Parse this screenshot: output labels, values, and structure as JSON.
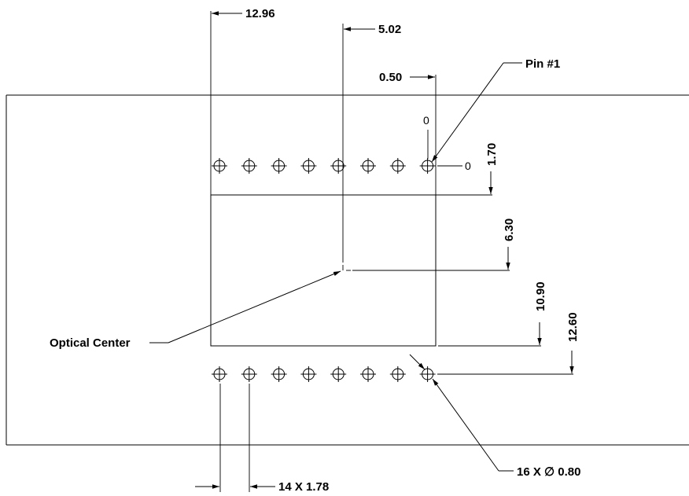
{
  "drawing": {
    "dimensions": {
      "pin1_x_from_left_edge": "12.96",
      "optical_center_x": "5.02",
      "pin1_x": "0.50",
      "pin_row_y": "1.70",
      "optical_center_y": "6.30",
      "die_bottom_y": "10.90",
      "bottom_row_y": "12.60",
      "pin_diameter": "16 X ∅ 0.80",
      "pin_pitch": "14 X 1.78"
    },
    "labels": {
      "pin1": "Pin #1",
      "optical_center": "Optical Center",
      "datum_x_zero": "0",
      "datum_y_zero": "0"
    },
    "pins": {
      "top_row_count": 8,
      "bottom_row_count": 8
    },
    "colors": {
      "line": "#000000",
      "background": "#ffffff"
    }
  }
}
